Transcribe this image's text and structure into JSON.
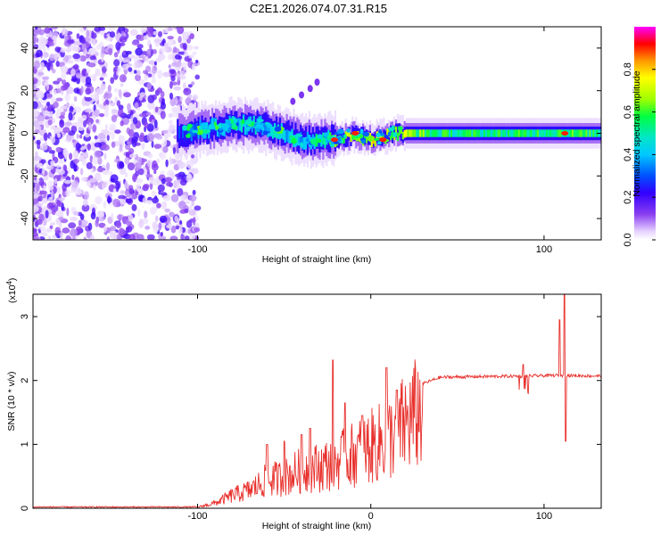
{
  "title": "C2E1.2026.074.07.31.R15",
  "chart_data": [
    {
      "type": "heatmap",
      "xlabel": "Height of straight line (km)",
      "ylabel": "Frequency (Hz)",
      "xlim": [
        -195,
        133
      ],
      "ylim": [
        -50,
        50
      ],
      "xticks": [
        -100,
        100
      ],
      "xtick_labels": [
        "-100",
        "100"
      ],
      "yticks": [
        -40,
        -20,
        0,
        20,
        40
      ],
      "ytick_labels": [
        "-40",
        "-20",
        "0",
        "20",
        "40"
      ],
      "colorbar": {
        "label": "Normalized spectral amplitude",
        "range": [
          0.0,
          1.0
        ],
        "ticks": [
          0.0,
          0.2,
          0.4,
          0.6,
          0.8
        ],
        "tick_labels": [
          "0.0",
          "0.2",
          "0.4",
          "0.6",
          "0.8"
        ],
        "colormap": [
          "#ffffff",
          "#e6d2ff",
          "#8a3ff0",
          "#3300ff",
          "#0050ff",
          "#00c8ff",
          "#00e6c8",
          "#00ff40",
          "#a0ff00",
          "#ffff00",
          "#ff9900",
          "#ff0000",
          "#ff00ff"
        ]
      },
      "ridge": [
        {
          "x": -110,
          "f": 0,
          "a": 0.3
        },
        {
          "x": -95,
          "f": 2,
          "a": 0.4
        },
        {
          "x": -80,
          "f": 4,
          "a": 0.45
        },
        {
          "x": -65,
          "f": 4,
          "a": 0.45
        },
        {
          "x": -55,
          "f": 1,
          "a": 0.45
        },
        {
          "x": -40,
          "f": -3,
          "a": 0.45
        },
        {
          "x": -25,
          "f": -3,
          "a": 0.55
        },
        {
          "x": -10,
          "f": -1,
          "a": 0.7
        },
        {
          "x": 0,
          "f": -3,
          "a": 0.75
        },
        {
          "x": 15,
          "f": 0,
          "a": 0.7
        },
        {
          "x": 40,
          "f": 0,
          "a": 0.55
        },
        {
          "x": 80,
          "f": 0,
          "a": 0.55
        },
        {
          "x": 110,
          "f": 0,
          "a": 0.6
        },
        {
          "x": 130,
          "f": 0,
          "a": 0.55
        }
      ],
      "hot_spots": [
        {
          "x": -21,
          "f": -3
        },
        {
          "x": -9,
          "f": 0
        },
        {
          "x": 7,
          "f": -3
        },
        {
          "x": 112,
          "f": 0
        }
      ],
      "faint_branch": [
        {
          "x": -45,
          "f": 15
        },
        {
          "x": -40,
          "f": 18
        },
        {
          "x": -35,
          "f": 21
        },
        {
          "x": -31,
          "f": 24
        }
      ]
    },
    {
      "type": "line",
      "xlabel": "Height of straight line (km)",
      "ylabel": "SNR (10 * v/v)",
      "multiplier": "(x10",
      "multiplier_exp": "4",
      "multiplier_close": ")",
      "xlim": [
        -195,
        133
      ],
      "ylim": [
        0,
        3.35
      ],
      "xticks": [
        -100,
        0,
        100
      ],
      "xtick_labels": [
        "-100",
        "0",
        "100"
      ],
      "yticks": [
        0,
        1,
        2,
        3
      ],
      "ytick_labels": [
        "0",
        "1",
        "2",
        "3"
      ],
      "color": "#e8322e",
      "envelope": [
        {
          "x": -195,
          "y": 0.02
        },
        {
          "x": -100,
          "y": 0.02
        },
        {
          "x": -90,
          "y": 0.1
        },
        {
          "x": -80,
          "y": 0.25
        },
        {
          "x": -70,
          "y": 0.35
        },
        {
          "x": -60,
          "y": 0.55
        },
        {
          "x": -50,
          "y": 0.6
        },
        {
          "x": -40,
          "y": 0.75
        },
        {
          "x": -30,
          "y": 0.8
        },
        {
          "x": -20,
          "y": 0.9
        },
        {
          "x": -10,
          "y": 1.05
        },
        {
          "x": 0,
          "y": 1.2
        },
        {
          "x": 10,
          "y": 1.35
        },
        {
          "x": 20,
          "y": 1.65
        },
        {
          "x": 30,
          "y": 1.95
        },
        {
          "x": 40,
          "y": 2.05
        },
        {
          "x": 60,
          "y": 2.06
        },
        {
          "x": 90,
          "y": 2.07
        },
        {
          "x": 108,
          "y": 2.08
        },
        {
          "x": 133,
          "y": 2.07
        }
      ],
      "spikes": [
        {
          "x": -60,
          "y": 1.0
        },
        {
          "x": -50,
          "y": 1.05
        },
        {
          "x": -40,
          "y": 1.15
        },
        {
          "x": -35,
          "y": 1.25
        },
        {
          "x": -22,
          "y": 2.32
        },
        {
          "x": -15,
          "y": 1.65
        },
        {
          "x": -5,
          "y": 1.45
        },
        {
          "x": 9,
          "y": 2.2
        },
        {
          "x": 15,
          "y": 1.85
        },
        {
          "x": 88,
          "y": 2.25
        },
        {
          "x": 109,
          "y": 2.95
        },
        {
          "x": 112,
          "y": 3.35
        },
        {
          "x": 112.5,
          "y": 1.05
        }
      ]
    }
  ]
}
